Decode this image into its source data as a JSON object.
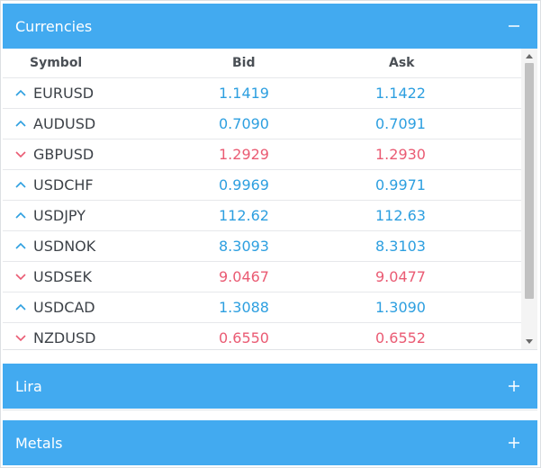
{
  "panels": {
    "currencies": {
      "title": "Currencies",
      "toggle": "minus"
    },
    "lira": {
      "title": "Lira",
      "toggle": "plus"
    },
    "metals": {
      "title": "Metals",
      "toggle": "plus"
    }
  },
  "columns": {
    "symbol": "Symbol",
    "bid": "Bid",
    "ask": "Ask"
  },
  "rows": [
    {
      "symbol": "EURUSD",
      "bid": "1.1419",
      "ask": "1.1422",
      "direction": "up"
    },
    {
      "symbol": "AUDUSD",
      "bid": "0.7090",
      "ask": "0.7091",
      "direction": "up"
    },
    {
      "symbol": "GBPUSD",
      "bid": "1.2929",
      "ask": "1.2930",
      "direction": "down"
    },
    {
      "symbol": "USDCHF",
      "bid": "0.9969",
      "ask": "0.9971",
      "direction": "up"
    },
    {
      "symbol": "USDJPY",
      "bid": "112.62",
      "ask": "112.63",
      "direction": "up"
    },
    {
      "symbol": "USDNOK",
      "bid": "8.3093",
      "ask": "8.3103",
      "direction": "up"
    },
    {
      "symbol": "USDSEK",
      "bid": "9.0467",
      "ask": "9.0477",
      "direction": "down"
    },
    {
      "symbol": "USDCAD",
      "bid": "1.3088",
      "ask": "1.3090",
      "direction": "up"
    },
    {
      "symbol": "NZDUSD",
      "bid": "0.6550",
      "ask": "0.6552",
      "direction": "down"
    }
  ],
  "colors": {
    "header": "#42aaf0",
    "up": "#2d9fe0",
    "down": "#ea5b73"
  }
}
